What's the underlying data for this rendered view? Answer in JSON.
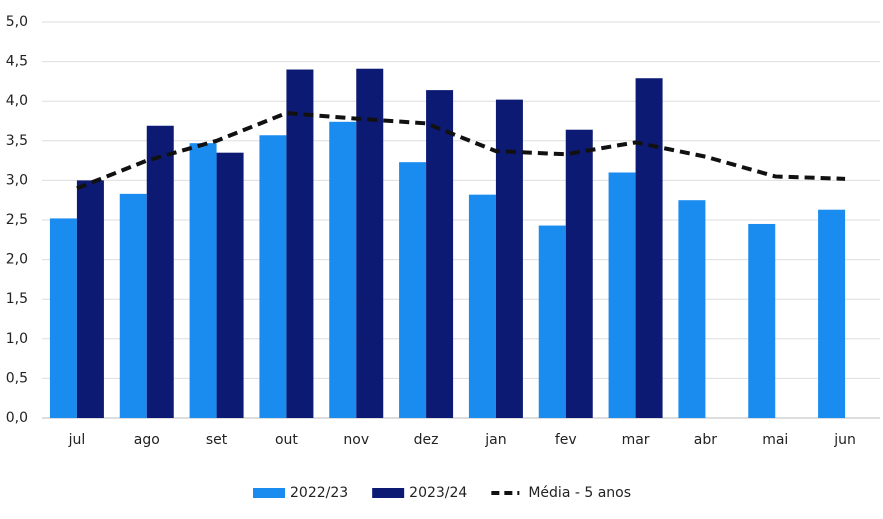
{
  "chart_data": {
    "type": "bar",
    "categories": [
      "jul",
      "ago",
      "set",
      "out",
      "nov",
      "dez",
      "jan",
      "fev",
      "mar",
      "abr",
      "mai",
      "jun"
    ],
    "series": [
      {
        "name": "2022/23",
        "type": "bar",
        "color": "#1a8cf0",
        "values": [
          2.52,
          2.83,
          3.47,
          3.57,
          3.74,
          3.23,
          2.82,
          2.43,
          3.1,
          2.75,
          2.45,
          2.63
        ]
      },
      {
        "name": "2023/24",
        "type": "bar",
        "color": "#0d1a73",
        "values": [
          3.0,
          3.69,
          3.35,
          4.4,
          4.41,
          4.14,
          4.02,
          3.64,
          4.29,
          null,
          null,
          null
        ]
      },
      {
        "name": "Média - 5 anos",
        "type": "line",
        "color": "#111111",
        "values": [
          2.9,
          3.25,
          3.5,
          3.85,
          3.78,
          3.72,
          3.37,
          3.33,
          3.48,
          3.3,
          3.05,
          3.02
        ]
      }
    ],
    "ylim": [
      0,
      5
    ],
    "yticks": [
      {
        "value": 0,
        "label": "0,0"
      },
      {
        "value": 0.5,
        "label": "0,5"
      },
      {
        "value": 1,
        "label": "1,0"
      },
      {
        "value": 1.5,
        "label": "1,5"
      },
      {
        "value": 2,
        "label": "2,0"
      },
      {
        "value": 2.5,
        "label": "2,5"
      },
      {
        "value": 3,
        "label": "3,0"
      },
      {
        "value": 3.5,
        "label": "3,5"
      },
      {
        "value": 4,
        "label": "4,0"
      },
      {
        "value": 4.5,
        "label": "4,5"
      },
      {
        "value": 5,
        "label": "5,0"
      }
    ],
    "grid": true,
    "legend": "bottom"
  }
}
